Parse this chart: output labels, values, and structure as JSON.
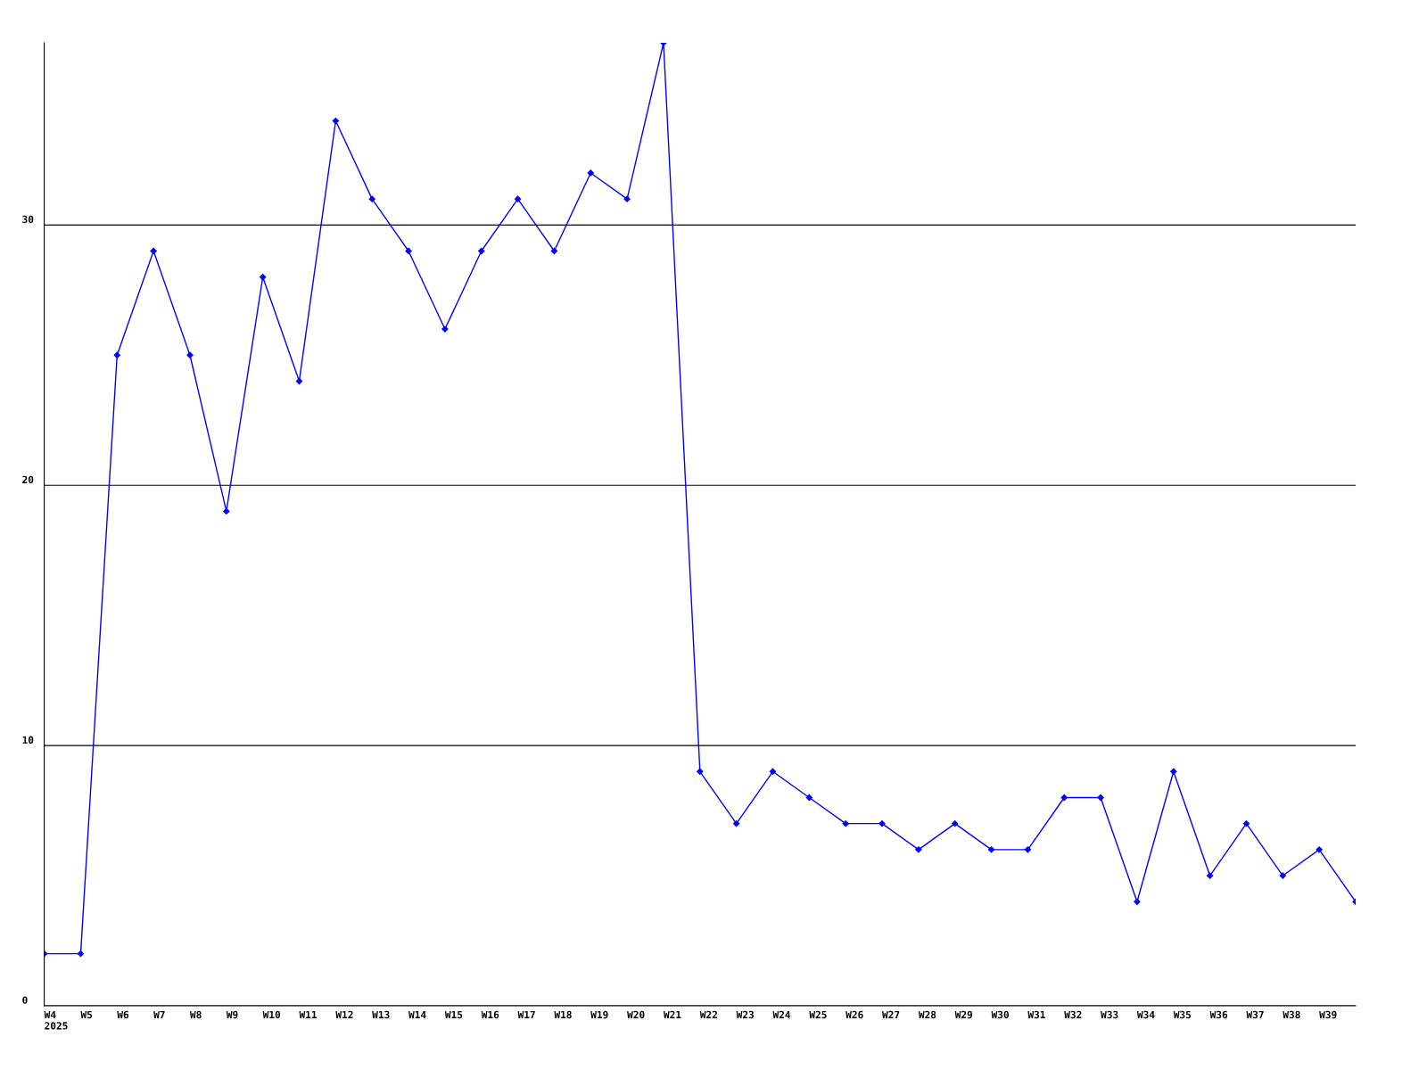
{
  "chart_data": {
    "type": "line",
    "categories": [
      "W4\n2025",
      "W5",
      "W6",
      "W7",
      "W8",
      "W9",
      "W10",
      "W11",
      "W12",
      "W13",
      "W14",
      "W15",
      "W16",
      "W17",
      "W18",
      "W19",
      "W20",
      "W21",
      "W22",
      "W23",
      "W24",
      "W25",
      "W26",
      "W27",
      "W28",
      "W29",
      "W30",
      "W31",
      "W32",
      "W33",
      "W34",
      "W35",
      "W36",
      "W37",
      "W38",
      "W39",
      null
    ],
    "series": [
      {
        "color": "#0000ff",
        "values": [
          2,
          2,
          25,
          29,
          25,
          19,
          28,
          24,
          34,
          31,
          29,
          26,
          29,
          31,
          29,
          32,
          31,
          37,
          9,
          7,
          9,
          8,
          7,
          7,
          6,
          7,
          6,
          6,
          8,
          8,
          4,
          9,
          5,
          7,
          5,
          6,
          4
        ]
      }
    ],
    "ylim": [
      0,
      37
    ],
    "yticks": [
      0,
      10,
      20,
      30
    ],
    "grid": "y",
    "marker": "diamond",
    "line_style": "solid"
  }
}
